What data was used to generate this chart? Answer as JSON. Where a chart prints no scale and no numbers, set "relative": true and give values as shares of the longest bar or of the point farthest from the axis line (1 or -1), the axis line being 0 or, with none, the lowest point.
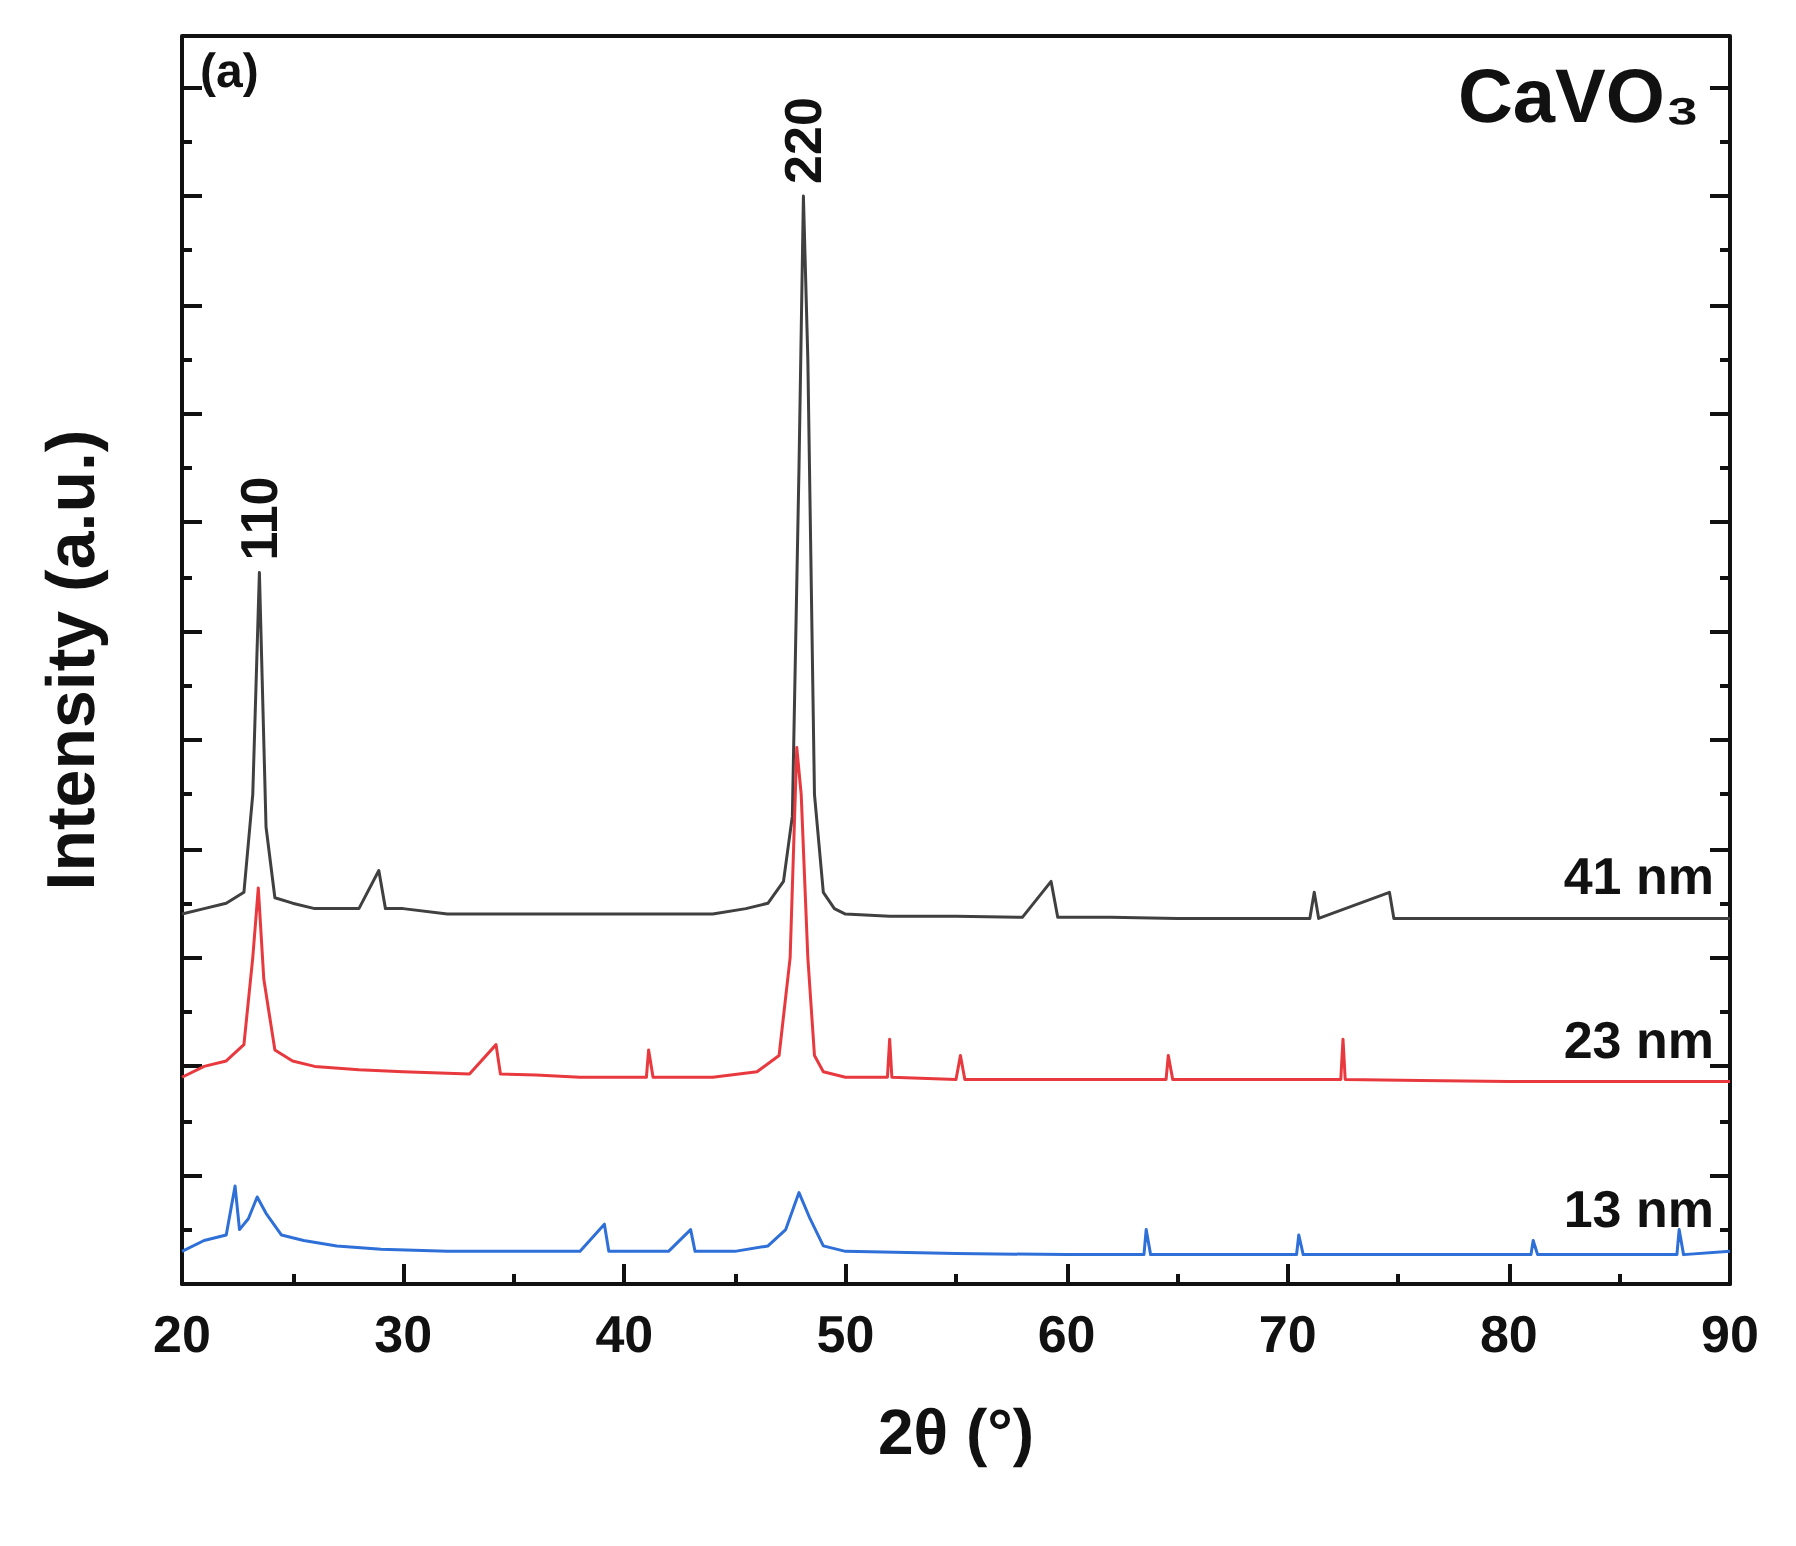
{
  "chart_data": {
    "type": "line",
    "relative": true,
    "xlabel": "2θ (°)",
    "ylabel": "Intensity (a.u.)",
    "xlim": [
      20,
      90
    ],
    "xticks": [
      20,
      30,
      40,
      50,
      60,
      70,
      80,
      90
    ],
    "tick_labels": "x",
    "grid": false,
    "legend": false,
    "marker": "none",
    "line_style": "solid",
    "annotations": [
      "(a)",
      "CaVO₃",
      {
        "text": "110",
        "x": 23.5,
        "y": 0.654
      },
      {
        "text": "220",
        "x": 48.1,
        "y": 1.0
      }
    ],
    "series": [
      {
        "name": "41 nm",
        "color": "#404040",
        "x": [
          20,
          21,
          22,
          22.8,
          23.2,
          23.5,
          23.8,
          24.2,
          25,
          26,
          27,
          28,
          28.9,
          29.2,
          30,
          32,
          34,
          36,
          38,
          40,
          42,
          44,
          45.5,
          46.5,
          47.2,
          47.6,
          47.9,
          48.1,
          48.3,
          48.6,
          49,
          49.5,
          50,
          52,
          55,
          58,
          59.3,
          59.6,
          62,
          65,
          68,
          71,
          71.2,
          71.4,
          74.6,
          74.8,
          78,
          82,
          86,
          90
        ],
        "values": [
          0.34,
          0.345,
          0.35,
          0.36,
          0.45,
          0.654,
          0.42,
          0.355,
          0.35,
          0.345,
          0.345,
          0.345,
          0.38,
          0.345,
          0.345,
          0.34,
          0.34,
          0.34,
          0.34,
          0.34,
          0.34,
          0.34,
          0.345,
          0.35,
          0.37,
          0.43,
          0.75,
          1.0,
          0.85,
          0.45,
          0.36,
          0.345,
          0.34,
          0.338,
          0.338,
          0.337,
          0.37,
          0.337,
          0.337,
          0.336,
          0.336,
          0.336,
          0.36,
          0.336,
          0.36,
          0.336,
          0.336,
          0.336,
          0.336,
          0.336
        ]
      },
      {
        "name": "23 nm",
        "color": "#e8393e",
        "x": [
          20,
          21,
          22,
          22.8,
          23.2,
          23.45,
          23.7,
          24.2,
          25,
          26,
          28,
          30,
          33,
          34.2,
          34.4,
          36,
          38,
          41,
          41.1,
          41.3,
          44,
          46,
          47,
          47.5,
          47.8,
          48.0,
          48.3,
          48.6,
          49,
          50,
          51.9,
          52,
          52.1,
          55,
          55.2,
          55.4,
          59,
          60,
          64.5,
          64.6,
          64.8,
          68,
          72.4,
          72.5,
          72.6,
          76,
          80,
          85,
          90
        ],
        "values": [
          0.19,
          0.2,
          0.205,
          0.22,
          0.3,
          0.364,
          0.28,
          0.215,
          0.205,
          0.2,
          0.197,
          0.195,
          0.193,
          0.22,
          0.193,
          0.192,
          0.19,
          0.19,
          0.215,
          0.19,
          0.19,
          0.195,
          0.21,
          0.3,
          0.493,
          0.45,
          0.3,
          0.21,
          0.195,
          0.19,
          0.19,
          0.225,
          0.19,
          0.188,
          0.21,
          0.188,
          0.188,
          0.188,
          0.188,
          0.21,
          0.188,
          0.188,
          0.188,
          0.225,
          0.188,
          0.187,
          0.186,
          0.186,
          0.186
        ]
      },
      {
        "name": "13 nm",
        "color": "#2f6fd8",
        "x": [
          20,
          21,
          22,
          22.4,
          22.6,
          23,
          23.4,
          23.8,
          24.5,
          25.5,
          27,
          29,
          32,
          35,
          38,
          39.1,
          39.3,
          42,
          43,
          43.2,
          45,
          46.5,
          47.3,
          47.9,
          48.4,
          49,
          50,
          55,
          60,
          63.5,
          63.6,
          63.8,
          66,
          70.4,
          70.5,
          70.7,
          75,
          81,
          81.1,
          81.3,
          85,
          87.6,
          87.7,
          87.9,
          90
        ],
        "values": [
          0.03,
          0.04,
          0.045,
          0.09,
          0.05,
          0.06,
          0.08,
          0.065,
          0.045,
          0.04,
          0.035,
          0.032,
          0.03,
          0.03,
          0.03,
          0.055,
          0.03,
          0.03,
          0.05,
          0.03,
          0.03,
          0.035,
          0.05,
          0.084,
          0.06,
          0.035,
          0.03,
          0.028,
          0.027,
          0.027,
          0.05,
          0.027,
          0.027,
          0.027,
          0.045,
          0.027,
          0.027,
          0.027,
          0.04,
          0.027,
          0.027,
          0.027,
          0.05,
          0.027,
          0.03
        ]
      }
    ]
  }
}
